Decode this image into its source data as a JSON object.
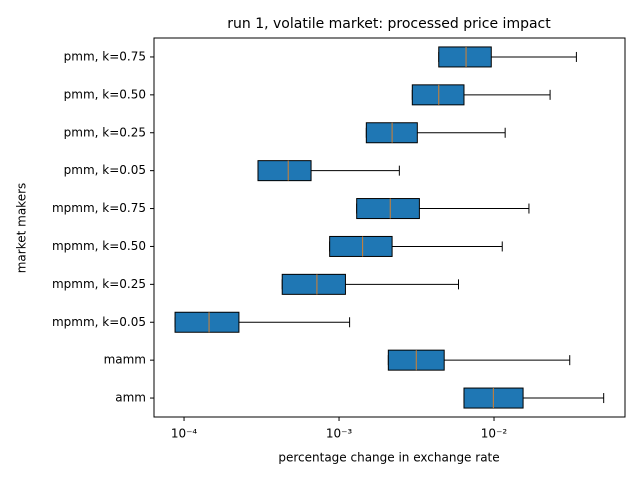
{
  "chart_data": {
    "type": "boxplot",
    "orientation": "horizontal",
    "title": "run 1, volatile market: processed price impact",
    "xlabel": "percentage change in exchange rate",
    "ylabel": "market makers",
    "xscale": "log",
    "xlim": [
      6.4e-05,
      0.07
    ],
    "xticks": [
      {
        "value": 0.0001,
        "label": "10⁻⁴"
      },
      {
        "value": 0.001,
        "label": "10⁻³"
      },
      {
        "value": 0.01,
        "label": "10⁻²"
      }
    ],
    "color": "#1f77b4",
    "median_color": "#d6802e",
    "categories": [
      "amm",
      "mamm",
      "mpmm, k=0.05",
      "mpmm, k=0.25",
      "mpmm, k=0.50",
      "mpmm, k=0.75",
      "pmm, k=0.05",
      "pmm, k=0.25",
      "pmm, k=0.50",
      "pmm, k=0.75"
    ],
    "boxes": [
      {
        "whislo": 0.0064,
        "q1": 0.0064,
        "med": 0.0099,
        "q3": 0.0154,
        "whishi": 0.051
      },
      {
        "whislo": 0.00208,
        "q1": 0.00208,
        "med": 0.00315,
        "q3": 0.00477,
        "whishi": 0.0308
      },
      {
        "whislo": 8.75e-05,
        "q1": 8.75e-05,
        "med": 0.000145,
        "q3": 0.000226,
        "whishi": 0.00117
      },
      {
        "whislo": 0.00043,
        "q1": 0.00043,
        "med": 0.00072,
        "q3": 0.0011,
        "whishi": 0.0059
      },
      {
        "whislo": 0.00087,
        "q1": 0.00087,
        "med": 0.00142,
        "q3": 0.0022,
        "whishi": 0.0113
      },
      {
        "whislo": 0.0013,
        "q1": 0.0013,
        "med": 0.00214,
        "q3": 0.0033,
        "whishi": 0.0168
      },
      {
        "whislo": 0.0003,
        "q1": 0.0003,
        "med": 0.00047,
        "q3": 0.00066,
        "whishi": 0.00245
      },
      {
        "whislo": 0.0015,
        "q1": 0.0015,
        "med": 0.0022,
        "q3": 0.0032,
        "whishi": 0.0118
      },
      {
        "whislo": 0.00297,
        "q1": 0.00297,
        "med": 0.0044,
        "q3": 0.0064,
        "whishi": 0.023
      },
      {
        "whislo": 0.0044,
        "q1": 0.0044,
        "med": 0.0066,
        "q3": 0.0096,
        "whishi": 0.034
      }
    ]
  }
}
